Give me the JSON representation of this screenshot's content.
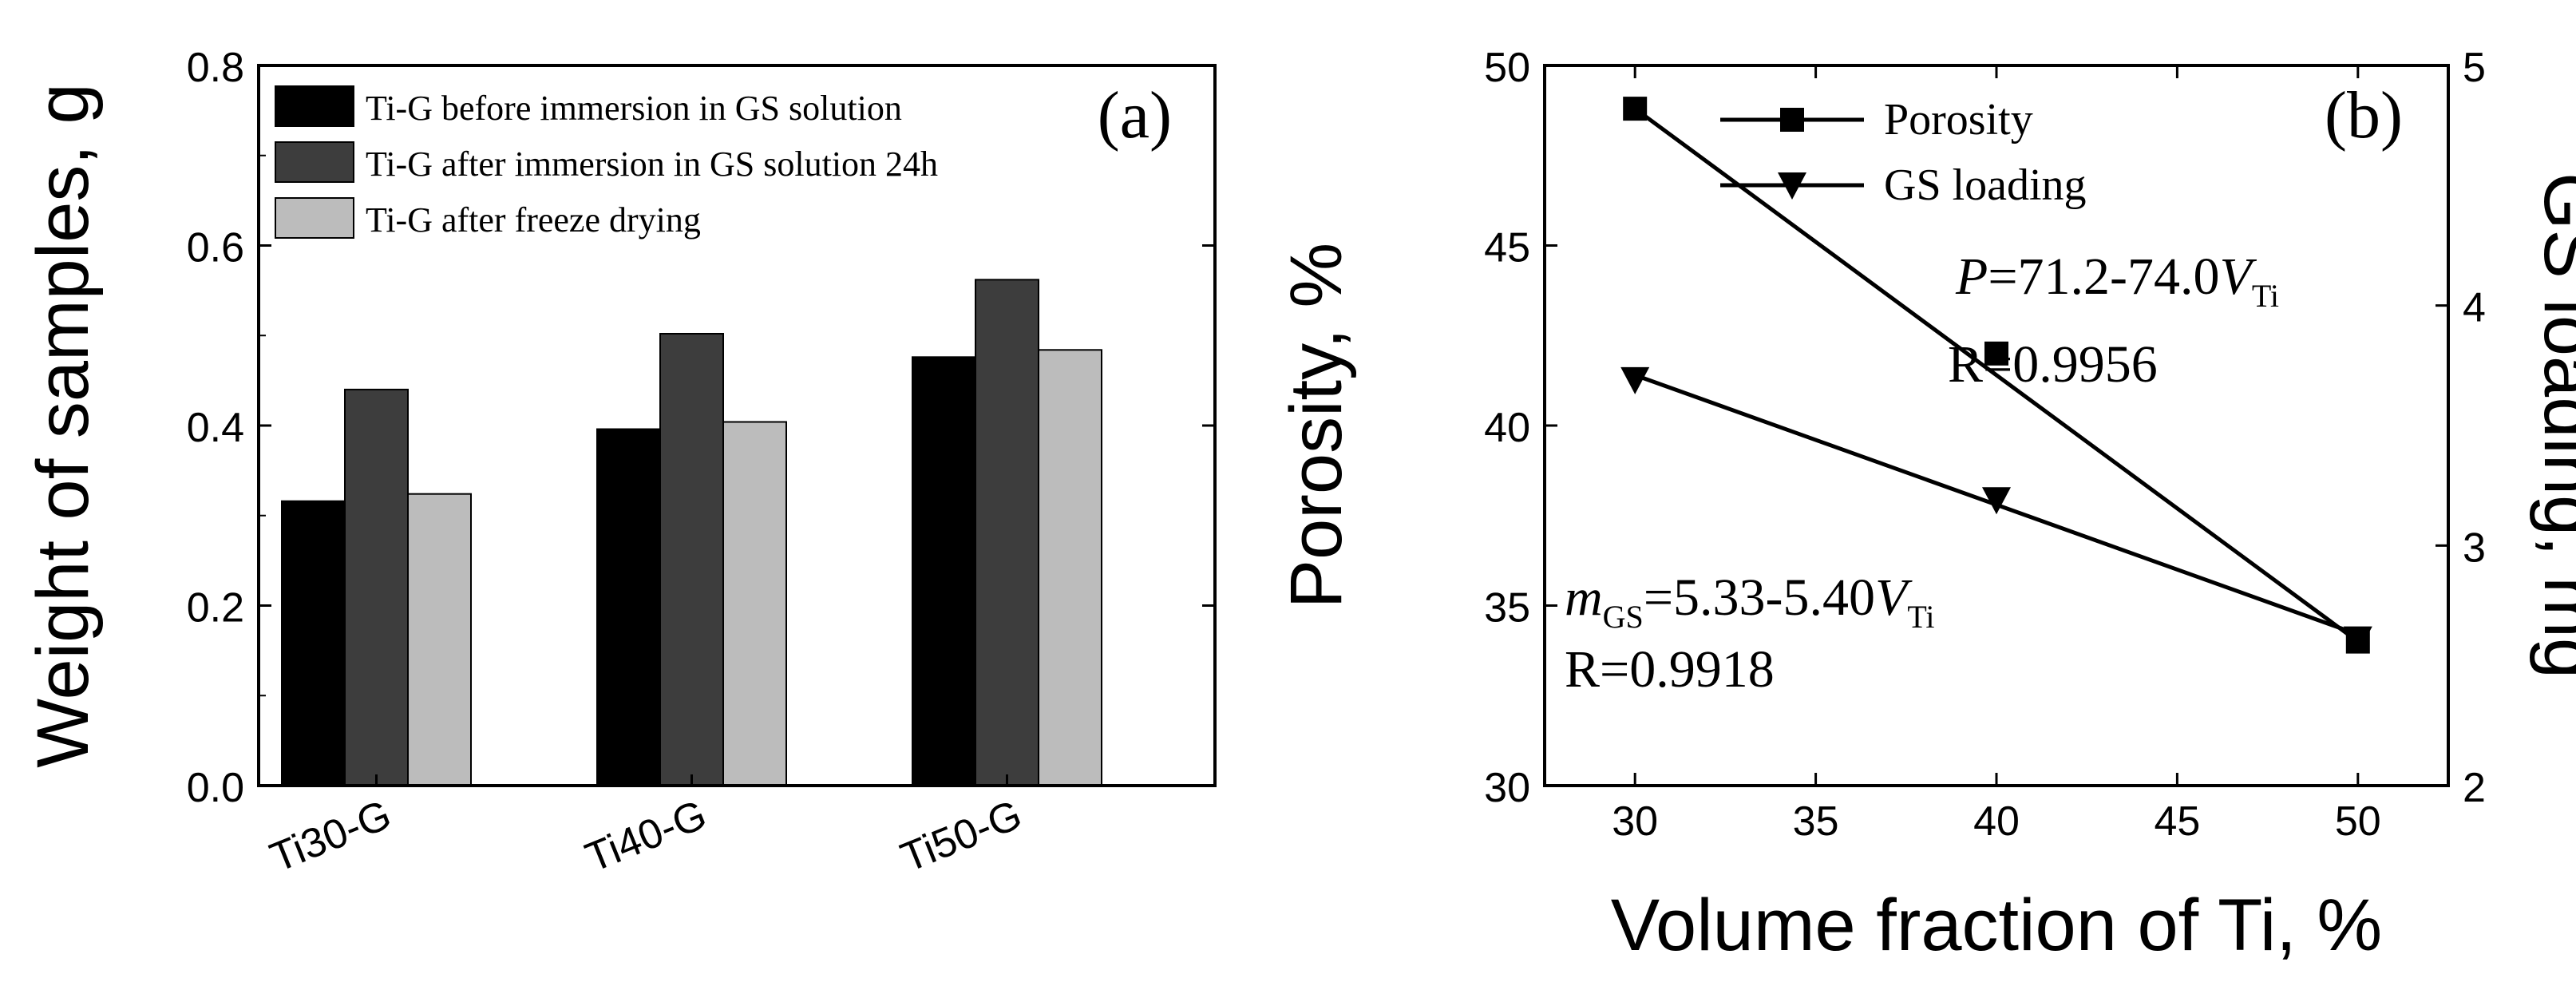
{
  "chart_data": [
    {
      "type": "bar",
      "panel_label": "(a)",
      "categories": [
        "Ti30-G",
        "Ti40-G",
        "Ti50-G"
      ],
      "series": [
        {
          "name": "Ti-G before immersion in GS solution",
          "color": "#000000",
          "values": [
            0.316,
            0.396,
            0.476
          ]
        },
        {
          "name": "Ti-G after immersion in GS solution 24h",
          "color": "#3d3d3d",
          "values": [
            0.44,
            0.502,
            0.562
          ]
        },
        {
          "name": "Ti-G after freeze drying",
          "color": "#bcbcbc",
          "values": [
            0.324,
            0.404,
            0.484
          ]
        }
      ],
      "ylabel": "Weight of samples, g",
      "xlabel": "",
      "ylim": [
        0,
        0.8
      ],
      "yticks": [
        0.0,
        0.2,
        0.4,
        0.6,
        0.8
      ],
      "ytick_labels": [
        "0.0",
        "0.2",
        "0.4",
        "0.6",
        "0.8"
      ],
      "legend_position": "top-left"
    },
    {
      "type": "line",
      "panel_label": "(b)",
      "xlabel": "Volume fraction of Ti, %",
      "ylabel": "Porosity, %",
      "y2label": "GS loading, mg",
      "xlim": [
        27.5,
        52.5
      ],
      "ylim": [
        30,
        50
      ],
      "y2lim": [
        2,
        5
      ],
      "xticks": [
        30,
        35,
        40,
        45,
        50
      ],
      "yticks": [
        30,
        35,
        40,
        45,
        50
      ],
      "y2ticks": [
        2,
        3,
        4,
        5
      ],
      "series": [
        {
          "name": "Porosity",
          "axis": "left",
          "marker": "square",
          "x": [
            30,
            40,
            50
          ],
          "y": [
            48.8,
            42.0,
            34.0
          ],
          "fit": {
            "x": [
              30,
              50
            ],
            "y": [
              48.8,
              34.0
            ]
          }
        },
        {
          "name": "GS loading",
          "axis": "right",
          "marker": "triangle-down",
          "x": [
            30,
            40,
            50
          ],
          "y": [
            3.69,
            3.19,
            2.61
          ],
          "fit": {
            "x": [
              30,
              50
            ],
            "y": [
              3.71,
              2.63
            ]
          }
        }
      ],
      "annotations": {
        "porosity_eq": {
          "lhs": "P",
          "mid": "=71.2-74.0",
          "var": "V",
          "sub": "Ti"
        },
        "porosity_r": "R=0.9956",
        "gs_eq": {
          "lhs": "m",
          "lhs_sub": "GS",
          "mid": "=5.33-5.40",
          "var": "V",
          "sub": "Ti"
        },
        "gs_r": "R=0.9918"
      },
      "legend_position": "top-center"
    }
  ]
}
